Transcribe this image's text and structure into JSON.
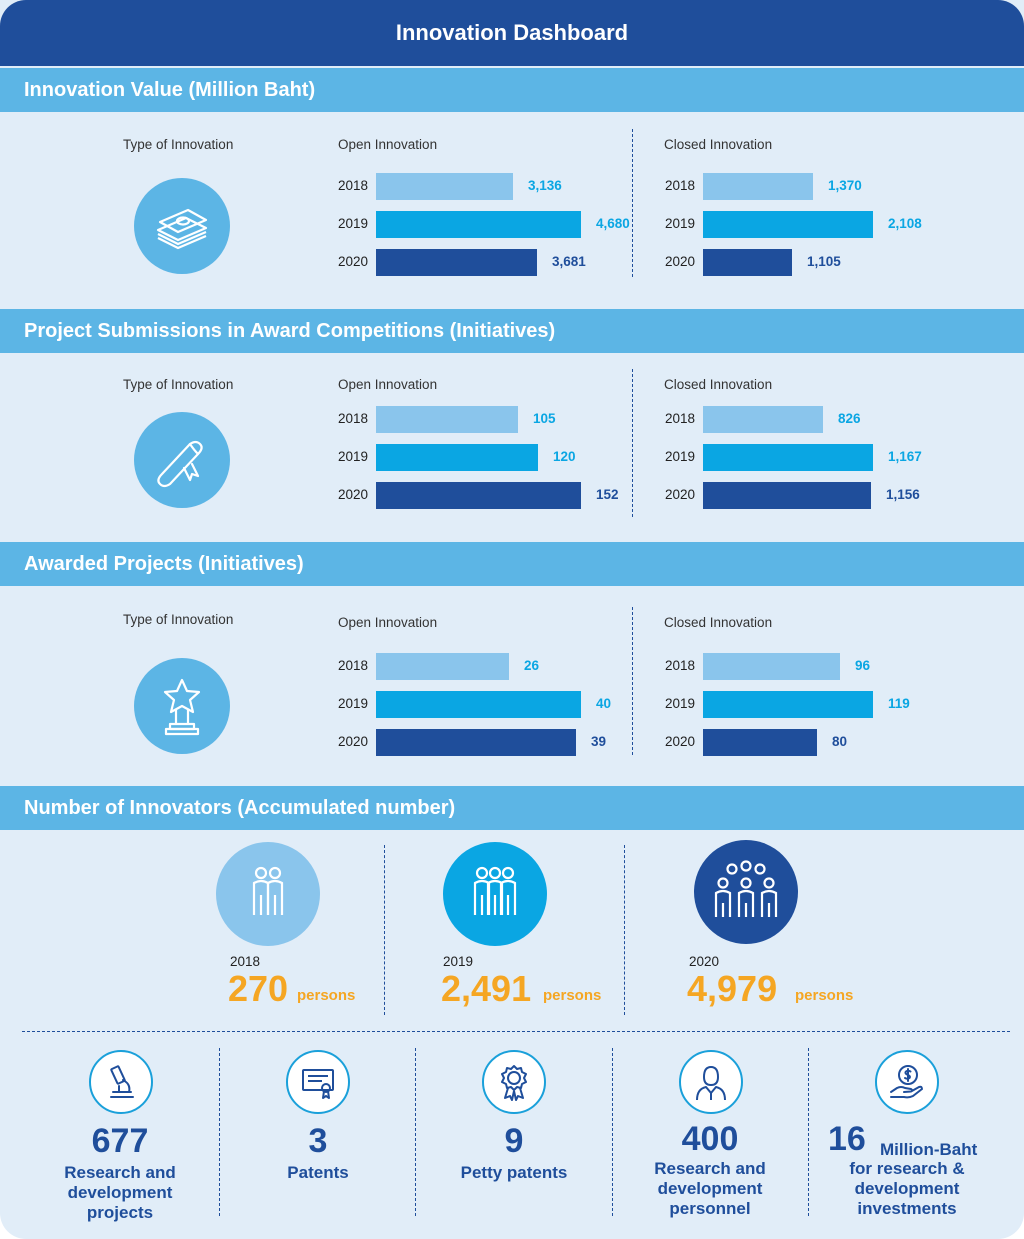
{
  "title": "Innovation Dashboard",
  "chart_data": [
    {
      "type": "bar",
      "title": "Innovation Value (Million Baht)",
      "type_label": "Type of Innovation",
      "icon": "money-stack-icon",
      "open_label": "Open Innovation",
      "closed_label": "Closed Innovation",
      "categories": [
        "2018",
        "2019",
        "2020"
      ],
      "series": [
        {
          "name": "Open Innovation",
          "values": [
            3136,
            4680,
            3681
          ],
          "labels": [
            "3,136",
            "4,680",
            "3,681"
          ]
        },
        {
          "name": "Closed Innovation",
          "values": [
            1370,
            2108,
            1105
          ],
          "labels": [
            "1,370",
            "2,108",
            "1,105"
          ]
        }
      ]
    },
    {
      "type": "bar",
      "title": "Project Submissions in Award Competitions (Initiatives)",
      "type_label": "Type of Innovation",
      "icon": "diploma-scroll-icon",
      "open_label": "Open Innovation",
      "closed_label": "Closed Innovation",
      "categories": [
        "2018",
        "2019",
        "2020"
      ],
      "series": [
        {
          "name": "Open Innovation",
          "values": [
            105,
            120,
            152
          ],
          "labels": [
            "105",
            "120",
            "152"
          ]
        },
        {
          "name": "Closed Innovation",
          "values": [
            826,
            1167,
            1156
          ],
          "labels": [
            "826",
            "1,167",
            "1,156"
          ]
        }
      ]
    },
    {
      "type": "bar",
      "title": "Awarded Projects (Initiatives)",
      "type_label": "Type of Innovation",
      "icon": "star-trophy-icon",
      "open_label": "Open Innovation",
      "closed_label": "Closed Innovation",
      "categories": [
        "2018",
        "2019",
        "2020"
      ],
      "series": [
        {
          "name": "Open Innovation",
          "values": [
            26,
            40,
            39
          ],
          "labels": [
            "26",
            "40",
            "39"
          ]
        },
        {
          "name": "Closed Innovation",
          "values": [
            96,
            119,
            80
          ],
          "labels": [
            "96",
            "119",
            "80"
          ]
        }
      ]
    }
  ],
  "innovators": {
    "title": "Number of Innovators (Accumulated number)",
    "items": [
      {
        "year": "2018",
        "value": "270",
        "unit": "persons"
      },
      {
        "year": "2019",
        "value": "2,491",
        "unit": "persons"
      },
      {
        "year": "2020",
        "value": "4,979",
        "unit": "persons"
      }
    ]
  },
  "stats": [
    {
      "icon": "microscope-icon",
      "value": "677",
      "label": "Research and development projects"
    },
    {
      "icon": "certificate-icon",
      "value": "3",
      "label": "Patents"
    },
    {
      "icon": "award-badge-icon",
      "value": "9",
      "label": "Petty patents"
    },
    {
      "icon": "person-icon",
      "value": "400",
      "label": "Research and development personnel"
    },
    {
      "icon": "money-hand-icon",
      "value": "16",
      "unit": "Million-Baht",
      "label": "for research & development investments"
    }
  ],
  "colors": {
    "banner": "#1f4e9b",
    "section_header": "#5cb5e5",
    "background": "#e1edf8",
    "bar_2018": "#8ac5ec",
    "bar_2019": "#0aa6e3",
    "bar_2020": "#1f4e9b",
    "highlight": "#f5a623"
  }
}
